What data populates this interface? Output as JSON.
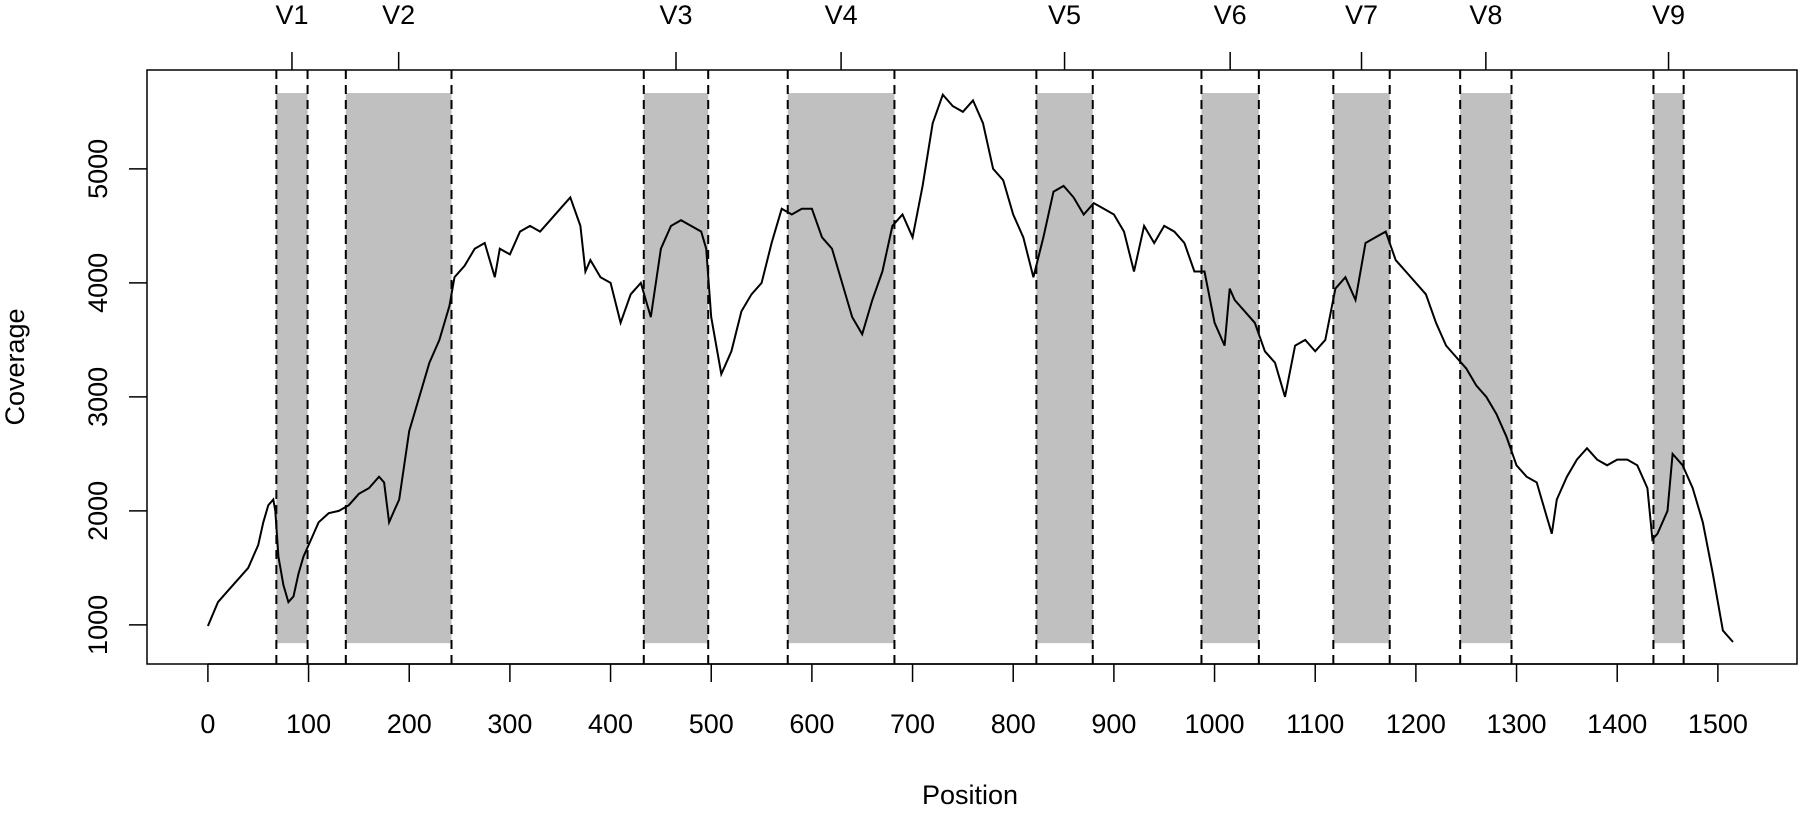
{
  "chart_data": {
    "type": "line",
    "xlabel": "Position",
    "ylabel": "Coverage",
    "color": "#000000",
    "xlim": [
      -60.5,
      1578.6
    ],
    "ylim": [
      657,
      5867
    ],
    "xticks": [
      0,
      100,
      200,
      300,
      400,
      500,
      600,
      700,
      800,
      900,
      1000,
      1100,
      1200,
      1300,
      1400,
      1500
    ],
    "yticks": [
      1000,
      2000,
      3000,
      4000,
      5000
    ],
    "region_color": "#c0c0c0",
    "region_range": [
      840,
      5665
    ],
    "regions": [
      {
        "name": "V1",
        "start": 68,
        "end": 99
      },
      {
        "name": "V2",
        "start": 137,
        "end": 242
      },
      {
        "name": "V3",
        "start": 433,
        "end": 497
      },
      {
        "name": "V4",
        "start": 576,
        "end": 682
      },
      {
        "name": "V5",
        "start": 823,
        "end": 879
      },
      {
        "name": "V6",
        "start": 987,
        "end": 1044
      },
      {
        "name": "V7",
        "start": 1118,
        "end": 1174
      },
      {
        "name": "V8",
        "start": 1244,
        "end": 1295
      },
      {
        "name": "V9",
        "start": 1436,
        "end": 1466
      }
    ],
    "x": [
      0,
      10,
      20,
      30,
      40,
      50,
      55,
      60,
      65,
      67,
      70,
      75,
      80,
      85,
      90,
      95,
      100,
      110,
      120,
      130,
      140,
      150,
      160,
      170,
      175,
      180,
      185,
      190,
      200,
      210,
      220,
      230,
      240,
      245,
      255,
      265,
      275,
      285,
      290,
      300,
      310,
      320,
      330,
      340,
      350,
      360,
      370,
      375,
      380,
      390,
      400,
      410,
      420,
      430,
      440,
      450,
      460,
      470,
      480,
      490,
      495,
      500,
      510,
      520,
      530,
      540,
      550,
      560,
      570,
      580,
      590,
      600,
      610,
      620,
      630,
      640,
      650,
      660,
      670,
      680,
      690,
      700,
      710,
      720,
      730,
      740,
      750,
      760,
      770,
      780,
      790,
      800,
      810,
      820,
      830,
      840,
      850,
      860,
      870,
      880,
      890,
      900,
      910,
      920,
      930,
      940,
      950,
      960,
      970,
      980,
      990,
      1000,
      1010,
      1015,
      1020,
      1030,
      1040,
      1050,
      1060,
      1070,
      1080,
      1090,
      1100,
      1110,
      1120,
      1130,
      1140,
      1150,
      1160,
      1170,
      1180,
      1190,
      1200,
      1210,
      1220,
      1230,
      1240,
      1250,
      1260,
      1270,
      1280,
      1290,
      1300,
      1310,
      1320,
      1330,
      1335,
      1340,
      1350,
      1360,
      1370,
      1380,
      1390,
      1400,
      1410,
      1420,
      1430,
      1435,
      1440,
      1450,
      1455,
      1465,
      1475,
      1485,
      1495,
      1505,
      1515
    ],
    "values": [
      990,
      1200,
      1300,
      1400,
      1500,
      1700,
      1900,
      2050,
      2100,
      2000,
      1600,
      1350,
      1200,
      1250,
      1450,
      1600,
      1700,
      1900,
      1980,
      2000,
      2050,
      2150,
      2200,
      2300,
      2250,
      1900,
      2000,
      2100,
      2700,
      3000,
      3300,
      3500,
      3800,
      4050,
      4150,
      4300,
      4350,
      4050,
      4300,
      4250,
      4450,
      4500,
      4450,
      4550,
      4650,
      4750,
      4500,
      4100,
      4200,
      4050,
      4000,
      3650,
      3900,
      4000,
      3700,
      4300,
      4500,
      4550,
      4500,
      4450,
      4300,
      3700,
      3200,
      3400,
      3750,
      3900,
      4000,
      4350,
      4650,
      4600,
      4650,
      4650,
      4400,
      4300,
      4000,
      3700,
      3550,
      3850,
      4100,
      4500,
      4600,
      4400,
      4850,
      5400,
      5650,
      5550,
      5500,
      5600,
      5400,
      5000,
      4900,
      4600,
      4400,
      4050,
      4400,
      4800,
      4850,
      4750,
      4600,
      4700,
      4650,
      4600,
      4450,
      4100,
      4500,
      4350,
      4500,
      4450,
      4350,
      4100,
      4100,
      3650,
      3450,
      3950,
      3850,
      3750,
      3650,
      3400,
      3300,
      3000,
      3450,
      3500,
      3400,
      3500,
      3950,
      4050,
      3850,
      4350,
      4400,
      4450,
      4200,
      4100,
      4000,
      3900,
      3650,
      3450,
      3350,
      3250,
      3100,
      3000,
      2850,
      2650,
      2400,
      2300,
      2250,
      1950,
      1800,
      2100,
      2300,
      2450,
      2550,
      2450,
      2400,
      2450,
      2450,
      2400,
      2200,
      1750,
      1800,
      2000,
      2500,
      2400,
      2200,
      1900,
      1450,
      950,
      850
    ]
  }
}
